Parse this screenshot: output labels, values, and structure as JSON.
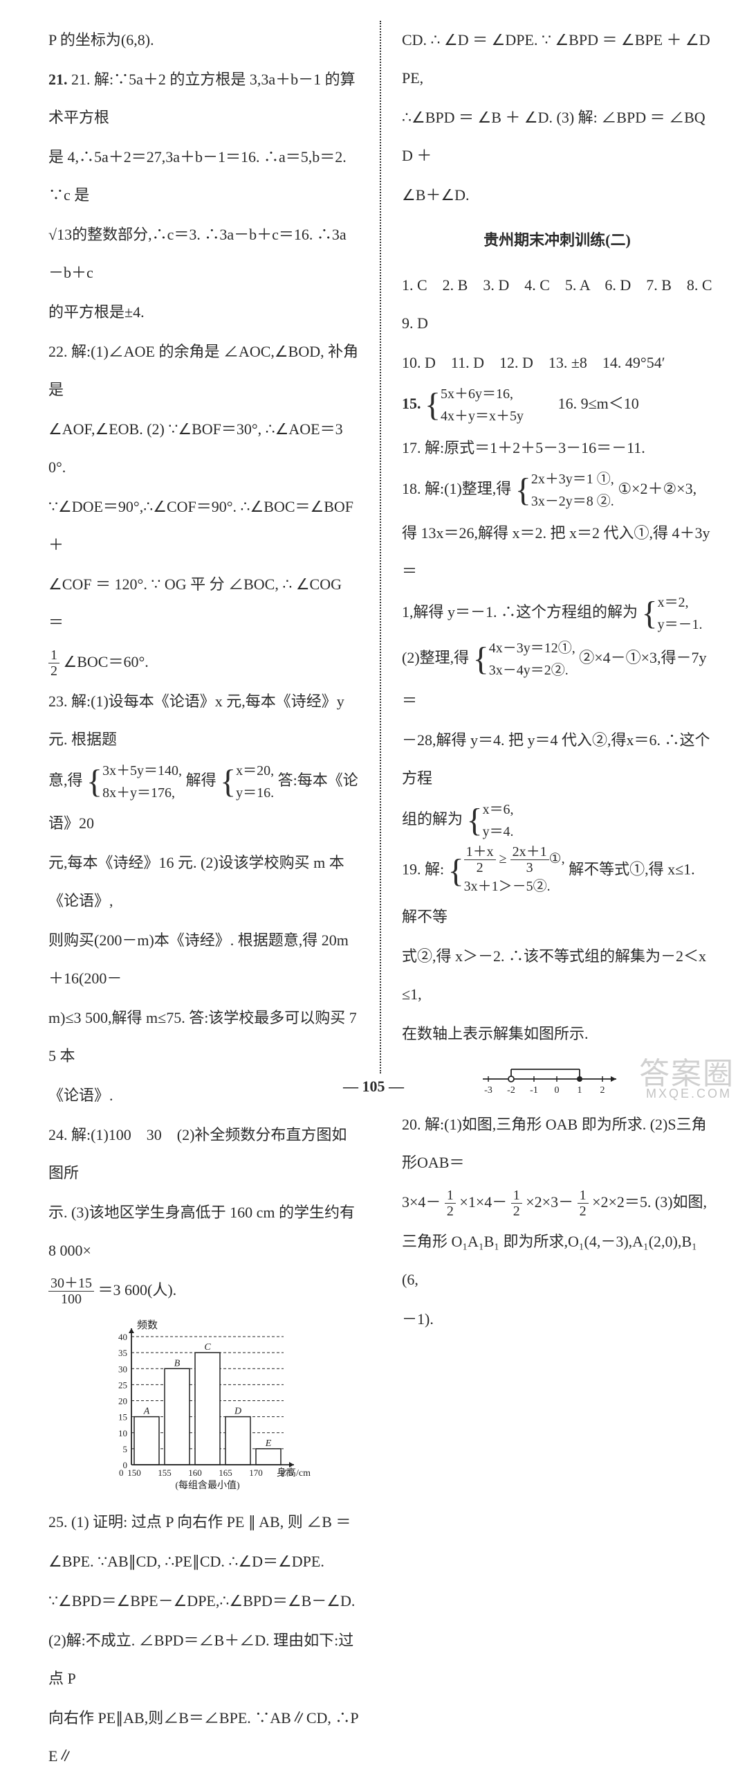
{
  "left": {
    "l0": "P 的坐标为(6,8).",
    "l21a": "21. 解:∵5a＋2 的立方根是 3,3a＋b－1 的算术平方根",
    "l21b": "是 4,∴5a＋2＝27,3a＋b－1＝16. ∴a＝5,b＝2. ∵c 是",
    "l21c": "√13的整数部分,∴c＝3. ∴3a－b＋c＝16. ∴3a－b＋c",
    "l21d": "的平方根是±4.",
    "l22a": "22. 解:(1)∠AOE 的余角是 ∠AOC,∠BOD, 补角是",
    "l22b": "∠AOF,∠EOB. (2) ∵∠BOF＝30°, ∴∠AOE＝30°.",
    "l22c": "∵∠DOE＝90°,∴∠COF＝90°. ∴∠BOC＝∠BOF＋",
    "l22d": "∠COF ＝ 120°. ∵ OG 平 分 ∠BOC, ∴ ∠COG ＝",
    "l22e_pre": "",
    "l22e_post": "∠BOC＝60°.",
    "l23a": "23. 解:(1)设每本《论语》x 元,每本《诗经》y 元. 根据题",
    "l23b_pre": "意,得",
    "l23b_mid": "解得",
    "l23b_post": "答:每本《论语》20",
    "brace1_l1": "3x＋5y＝140,",
    "brace1_l2": "8x＋y＝176,",
    "brace2_l1": "x＝20,",
    "brace2_l2": "y＝16.",
    "l23c": "元,每本《诗经》16 元. (2)设该学校购买 m 本《论语》,",
    "l23d": "则购买(200－m)本《诗经》. 根据题意,得 20m＋16(200－",
    "l23e": "m)≤3 500,解得 m≤75. 答:该学校最多可以购买 75 本",
    "l23f": "《论语》.",
    "l24a": "24. 解:(1)100　30　(2)补全频数分布直方图如图所",
    "l24b": "示. (3)该地区学生身高低于 160 cm 的学生约有 8 000×",
    "l24c_post": "＝3 600(人).",
    "l25a": "25. (1) 证明: 过点 P 向右作 PE ∥ AB, 则 ∠B ＝",
    "l25b": "∠BPE. ∵AB∥CD, ∴PE∥CD. ∴∠D＝∠DPE.",
    "l25c": "∵∠BPD＝∠BPE－∠DPE,∴∠BPD＝∠B－∠D.",
    "l25d": "(2)解:不成立. ∠BPD＝∠B＋∠D. 理由如下:过点 P",
    "l25e": "向右作 PE∥AB,则∠B＝∠BPE. ∵AB∥CD, ∴PE∥"
  },
  "right": {
    "r0": "CD. ∴ ∠D ＝ ∠DPE. ∵ ∠BPD ＝ ∠BPE ＋ ∠DPE,",
    "r1": "∴∠BPD ＝ ∠B ＋ ∠D. (3) 解: ∠BPD ＝ ∠BQD ＋",
    "r2": "∠B＋∠D.",
    "title": "贵州期末冲刺训练(二)",
    "ans1": "1. C　2. B　3. D　4. C　5. A　6. D　7. B　8. C　9. D",
    "ans2": "10. D　11. D　12. D　13. ±8　14. 49°54′",
    "q15_pre": "15.",
    "q15_l1": "5x＋6y＝16,",
    "q15_l2": "4x＋y＝x＋5y",
    "q16": "16. 9≤m＜10",
    "q17": "17. 解:原式＝1＋2＋5－3－16＝－11.",
    "q18a_pre": "18. 解:(1)整理,得",
    "q18a_l1": "2x＋3y＝1 ①,",
    "q18a_l2": "3x－2y＝8 ②.",
    "q18a_post": "①×2＋②×3,",
    "q18b": "得 13x＝26,解得 x＝2. 把 x＝2 代入①,得 4＋3y＝",
    "q18c_pre": "1,解得 y＝－1. ∴这个方程组的解为",
    "q18c_l1": "x＝2,",
    "q18c_l2": "y＝－1.",
    "q18d_pre": "(2)整理,得",
    "q18d_l1": "4x－3y＝12①,",
    "q18d_l2": "3x－4y＝2②.",
    "q18d_post": "②×4－①×3,得－7y＝",
    "q18e": "－28,解得 y＝4. 把 y＝4 代入②,得x＝6. ∴这个方程",
    "q18f_pre": "组的解为",
    "q18f_l1": "x＝6,",
    "q18f_l2": "y＝4.",
    "q19_pre": "19. 解:",
    "q19_post": "解不等式①,得 x≤1. 解不等",
    "q19_l2": "3x＋1＞－5②.",
    "q19b": "式②,得 x＞－2. ∴该不等式组的解集为－2＜x≤1,",
    "q19c": "在数轴上表示解集如图所示.",
    "q20a": "20. 解:(1)如图,三角形 OAB 即为所求. (2)S三角形OAB＝",
    "q20b_pre": "3×4－",
    "q20b_mid1": "×1×4－",
    "q20b_mid2": "×2×3－",
    "q20b_post": "×2×2＝5. (3)如图,",
    "q20c": "三角形 O₁A₁B₁ 即为所求,O₁(4,－3),A₁(2,0),B₁(6,",
    "q20d": "－1)."
  },
  "frac_half_num": "1",
  "frac_half_den": "2",
  "frac_3015_num": "30＋15",
  "frac_3015_den": "100",
  "chart": {
    "ylabel": "频数",
    "xlabel": "身高/cm",
    "xlabel2": "(每组含最小值)",
    "yticks": [
      0,
      5,
      10,
      15,
      20,
      25,
      30,
      35,
      40
    ],
    "xticks": [
      "150",
      "155",
      "160",
      "165",
      "170",
      "175"
    ],
    "bars": [
      15,
      30,
      35,
      15,
      5
    ],
    "letters": [
      "A",
      "B",
      "C",
      "D",
      "E"
    ],
    "axis_color": "#222",
    "bar_fill": "#ffffff",
    "bar_stroke": "#222",
    "grid_dash": "4 3"
  },
  "numberline": {
    "ticks": [
      -3,
      -2,
      -1,
      0,
      1,
      2
    ],
    "open_at": -2,
    "closed_at": 1,
    "axis_color": "#222"
  },
  "page_number": "105",
  "watermark": "答案圈",
  "watermark_sub": "MXQE.COM"
}
